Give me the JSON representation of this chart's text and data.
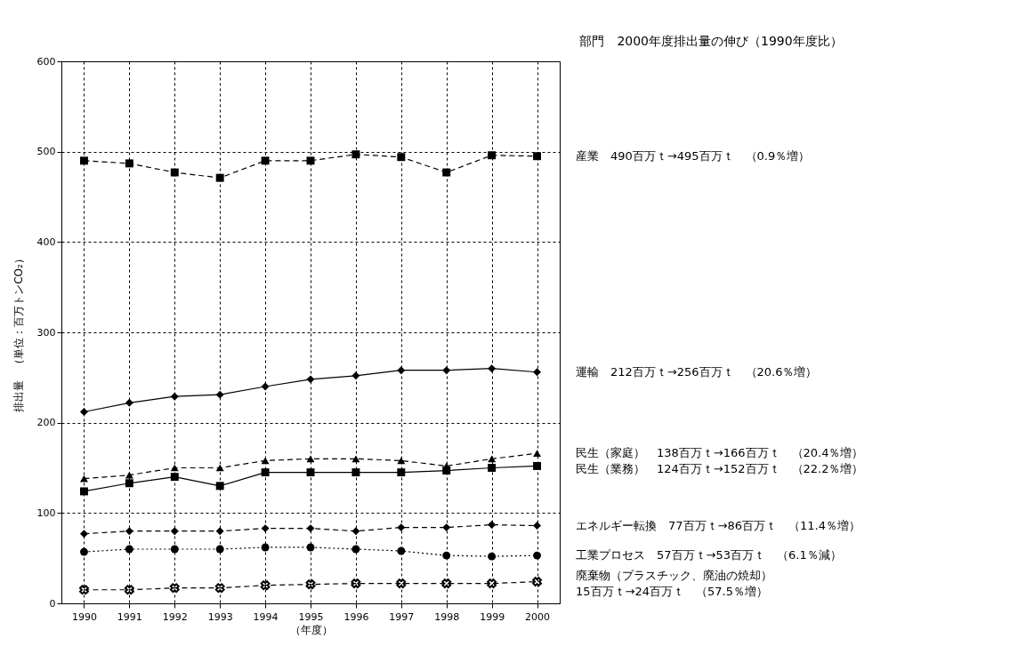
{
  "chart_data": {
    "type": "line",
    "legend_title": "部門　2000年度排出量の伸び（1990年度比）",
    "xlabel": "（年度）",
    "ylabel": "排出量　（単位：百万トンCO₂）",
    "categories": [
      "1990",
      "1991",
      "1992",
      "1993",
      "1994",
      "1995",
      "1996",
      "1997",
      "1998",
      "1999",
      "2000"
    ],
    "ylim": [
      0,
      600
    ],
    "yticks": [
      0,
      100,
      200,
      300,
      400,
      500,
      600
    ],
    "grid": true,
    "legend": "right",
    "series": [
      {
        "name": "産業　490百万ｔ→495百万ｔ　（0.9％増）",
        "color": "#000000",
        "marker": "square",
        "line_style": "dashed",
        "values": [
          490,
          487,
          477,
          471,
          490,
          490,
          497,
          494,
          477,
          496,
          495
        ]
      },
      {
        "name": "運輸　212百万ｔ→256百万ｔ　（20.6％増）",
        "color": "#000000",
        "marker": "diamond",
        "line_style": "solid",
        "values": [
          212,
          222,
          229,
          231,
          240,
          248,
          252,
          258,
          258,
          260,
          256
        ]
      },
      {
        "name": "民生（家庭）　138百万ｔ→166百万ｔ　（20.4％増）",
        "color": "#000000",
        "marker": "triangle",
        "line_style": "dashed",
        "values": [
          138,
          142,
          150,
          150,
          158,
          160,
          160,
          158,
          152,
          160,
          166
        ]
      },
      {
        "name": "民生（業務）　124百万ｔ→152百万ｔ　（22.2％増）",
        "color": "#000000",
        "marker": "square",
        "line_style": "solid",
        "values": [
          124,
          133,
          140,
          130,
          145,
          145,
          145,
          145,
          147,
          150,
          152
        ]
      },
      {
        "name": "エネルギー転換　77百万ｔ→86百万ｔ　（11.4％増）",
        "color": "#000000",
        "marker": "diamond",
        "line_style": "dashed",
        "values": [
          77,
          80,
          80,
          80,
          83,
          83,
          80,
          84,
          84,
          87,
          86
        ]
      },
      {
        "name": "工業プロセス　57百万ｔ→53百万ｔ　（6.1％減）",
        "color": "#000000",
        "marker": "circle",
        "line_style": "dotted",
        "values": [
          57,
          60,
          60,
          60,
          62,
          62,
          60,
          58,
          53,
          52,
          53
        ]
      },
      {
        "name": "廃棄物（プラスチック、廃油の焼却）\n　　　　　15百万ｔ→24百万ｔ　（57.5％増）",
        "color": "#000000",
        "marker": "cross",
        "line_style": "dashed",
        "values": [
          15,
          15,
          17,
          17,
          20,
          21,
          22,
          22,
          22,
          22,
          24
        ]
      }
    ]
  }
}
